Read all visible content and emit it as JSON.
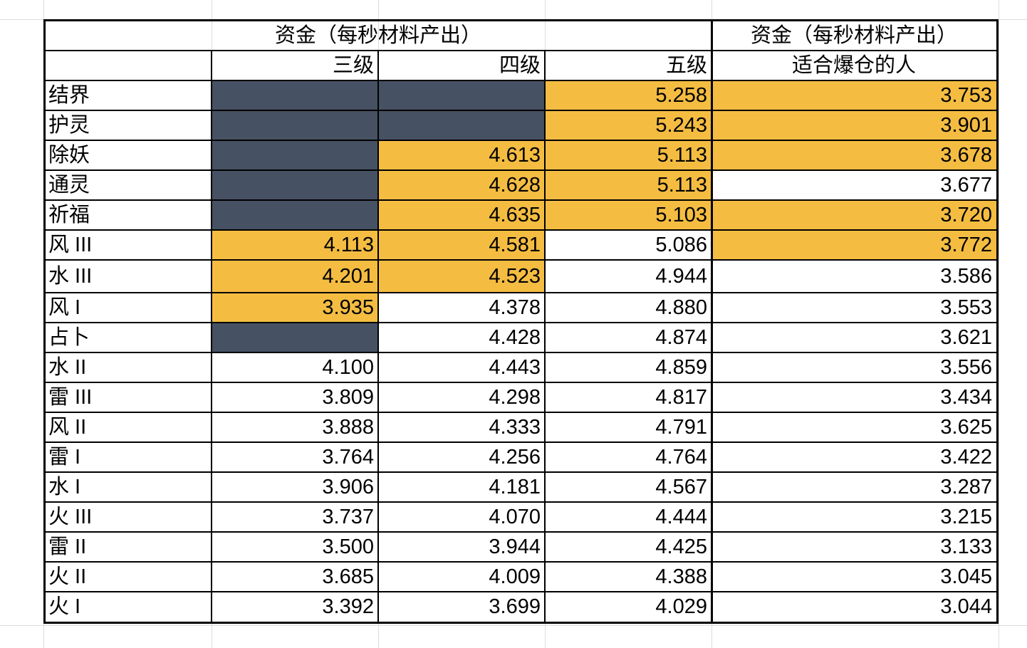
{
  "header": {
    "group_title_left": "资金（每秒材料产出）",
    "group_title_right": "资金（每秒材料产出）",
    "col3_label": "三级",
    "col4_label": "四级",
    "col5_label": "五级",
    "col_last_label": "适合爆仓的人"
  },
  "colors": {
    "highlight": "#f4bd42",
    "unavailable": "#465163"
  },
  "rows": [
    {
      "name": "结界",
      "c3": "",
      "c4": "",
      "c5": "5.258",
      "cl": "3.753",
      "s3": "slate",
      "s4": "slate",
      "s5": "gold",
      "sl": "gold"
    },
    {
      "name": "护灵",
      "c3": "",
      "c4": "",
      "c5": "5.243",
      "cl": "3.901",
      "s3": "slate",
      "s4": "slate",
      "s5": "gold",
      "sl": "gold"
    },
    {
      "name": "除妖",
      "c3": "",
      "c4": "4.613",
      "c5": "5.113",
      "cl": "3.678",
      "s3": "slate",
      "s4": "gold",
      "s5": "gold",
      "sl": "gold"
    },
    {
      "name": "通灵",
      "c3": "",
      "c4": "4.628",
      "c5": "5.113",
      "cl": "3.677",
      "s3": "slate",
      "s4": "gold",
      "s5": "gold",
      "sl": ""
    },
    {
      "name": "祈福",
      "c3": "",
      "c4": "4.635",
      "c5": "5.103",
      "cl": "3.720",
      "s3": "slate",
      "s4": "gold",
      "s5": "gold",
      "sl": "gold"
    },
    {
      "name": "风 III",
      "c3": "4.113",
      "c4": "4.581",
      "c5": "5.086",
      "cl": "3.772",
      "s3": "gold",
      "s4": "gold",
      "s5": "",
      "sl": "gold"
    },
    {
      "name": "水 III",
      "c3": "4.201",
      "c4": "4.523",
      "c5": "4.944",
      "cl": "3.586",
      "s3": "gold",
      "s4": "gold",
      "s5": "",
      "sl": ""
    },
    {
      "name": "风 I",
      "c3": "3.935",
      "c4": "4.378",
      "c5": "4.880",
      "cl": "3.553",
      "s3": "gold",
      "s4": "",
      "s5": "",
      "sl": ""
    },
    {
      "name": "占卜",
      "c3": "",
      "c4": "4.428",
      "c5": "4.874",
      "cl": "3.621",
      "s3": "slate",
      "s4": "",
      "s5": "",
      "sl": ""
    },
    {
      "name": "水 II",
      "c3": "4.100",
      "c4": "4.443",
      "c5": "4.859",
      "cl": "3.556",
      "s3": "",
      "s4": "",
      "s5": "",
      "sl": ""
    },
    {
      "name": "雷 III",
      "c3": "3.809",
      "c4": "4.298",
      "c5": "4.817",
      "cl": "3.434",
      "s3": "",
      "s4": "",
      "s5": "",
      "sl": ""
    },
    {
      "name": "风 II",
      "c3": "3.888",
      "c4": "4.333",
      "c5": "4.791",
      "cl": "3.625",
      "s3": "",
      "s4": "",
      "s5": "",
      "sl": ""
    },
    {
      "name": "雷 I",
      "c3": "3.764",
      "c4": "4.256",
      "c5": "4.764",
      "cl": "3.422",
      "s3": "",
      "s4": "",
      "s5": "",
      "sl": ""
    },
    {
      "name": "水 I",
      "c3": "3.906",
      "c4": "4.181",
      "c5": "4.567",
      "cl": "3.287",
      "s3": "",
      "s4": "",
      "s5": "",
      "sl": ""
    },
    {
      "name": "火 III",
      "c3": "3.737",
      "c4": "4.070",
      "c5": "4.444",
      "cl": "3.215",
      "s3": "",
      "s4": "",
      "s5": "",
      "sl": ""
    },
    {
      "name": "雷 II",
      "c3": "3.500",
      "c4": "3.944",
      "c5": "4.425",
      "cl": "3.133",
      "s3": "",
      "s4": "",
      "s5": "",
      "sl": ""
    },
    {
      "name": "火 II",
      "c3": "3.685",
      "c4": "4.009",
      "c5": "4.388",
      "cl": "3.045",
      "s3": "",
      "s4": "",
      "s5": "",
      "sl": ""
    },
    {
      "name": "火 I",
      "c3": "3.392",
      "c4": "3.699",
      "c5": "4.029",
      "cl": "3.044",
      "s3": "",
      "s4": "",
      "s5": "",
      "sl": ""
    }
  ]
}
